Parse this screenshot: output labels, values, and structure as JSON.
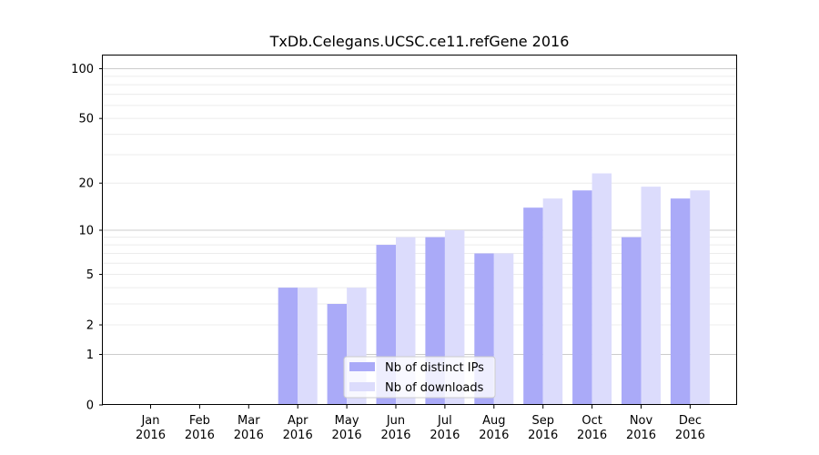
{
  "chart_data": {
    "type": "bar",
    "title": "TxDb.Celegans.UCSC.ce11.refGene 2016",
    "xlabel": "",
    "ylabel": "",
    "yscale": "log(1+y)",
    "ylim": [
      0,
      120
    ],
    "yticks": [
      0,
      1,
      2,
      5,
      10,
      20,
      50,
      100
    ],
    "ytick_labels": [
      "0",
      "1",
      "2",
      "5",
      "10",
      "20",
      "50",
      "100"
    ],
    "categories": [
      {
        "month": "Jan",
        "year": "2016"
      },
      {
        "month": "Feb",
        "year": "2016"
      },
      {
        "month": "Mar",
        "year": "2016"
      },
      {
        "month": "Apr",
        "year": "2016"
      },
      {
        "month": "May",
        "year": "2016"
      },
      {
        "month": "Jun",
        "year": "2016"
      },
      {
        "month": "Jul",
        "year": "2016"
      },
      {
        "month": "Aug",
        "year": "2016"
      },
      {
        "month": "Sep",
        "year": "2016"
      },
      {
        "month": "Oct",
        "year": "2016"
      },
      {
        "month": "Nov",
        "year": "2016"
      },
      {
        "month": "Dec",
        "year": "2016"
      }
    ],
    "series": [
      {
        "name": "Nb of distinct IPs",
        "color": "#aaaaf8",
        "values": [
          0,
          0,
          0,
          4,
          3,
          8,
          9,
          7,
          14,
          18,
          9,
          16
        ]
      },
      {
        "name": "Nb of downloads",
        "color": "#dcdcfc",
        "values": [
          0,
          0,
          0,
          4,
          4,
          9,
          10,
          7,
          16,
          23,
          19,
          18
        ]
      }
    ],
    "grid": "y",
    "legend_position": "bottom-center"
  }
}
